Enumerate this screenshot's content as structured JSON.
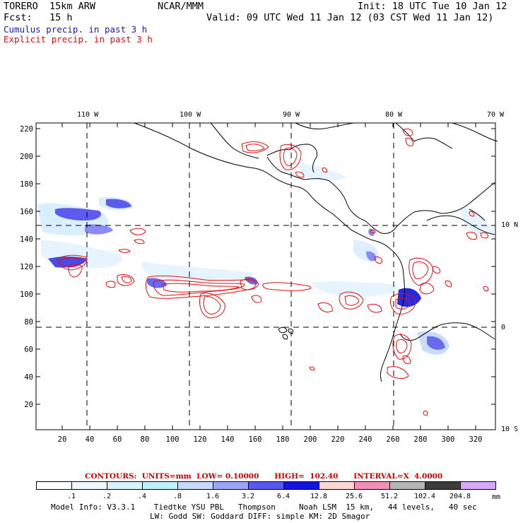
{
  "header": {
    "model": "TORERO  15km ARW",
    "org": "NCAR/MMM",
    "init": "Init: 18 UTC Tue 10 Jan 12",
    "fcst": "Fcst:   15 h",
    "valid": "Valid: 09 UTC Wed 11 Jan 12 (03 CST Wed 11 Jan 12)",
    "field1": "Cumulus precip. in past 3 h",
    "field2": "Explicit precip. in past 3 h",
    "field1_color": "#1a1ab0",
    "field2_color": "#e01010"
  },
  "map": {
    "top_lon_labels": [
      "110 W",
      "100 W",
      "90 W",
      "80 W",
      "70 W"
    ],
    "right_lat_labels": [
      "10 N",
      "0",
      "10 S"
    ],
    "y_ticks": [
      "220",
      "200",
      "180",
      "160",
      "140",
      "120",
      "100",
      "80",
      "60",
      "40",
      "20"
    ],
    "x_ticks": [
      "20",
      "40",
      "60",
      "80",
      "100",
      "120",
      "140",
      "160",
      "180",
      "200",
      "220",
      "240",
      "260",
      "280",
      "300",
      "320"
    ],
    "coast_color": "#000000",
    "grid_color": "#000000",
    "contour_color": "#e01010",
    "cumulus_colors": [
      "#dff0ff",
      "#9fb0f8",
      "#4040e8",
      "#1010d0"
    ]
  },
  "contour_info": {
    "label": "CONTOURS:  UNITS=mm  LOW= 0.10000      HIGH=  102.40      INTERVAL=X  4.0000",
    "color": "#cc0000"
  },
  "colorbar": {
    "labels": [
      ".1",
      ".2",
      ".4",
      ".8",
      "1.6",
      "3.2",
      "6.4",
      "12.8",
      "25.6",
      "51.2",
      "102.4",
      "204.8"
    ],
    "unit": "mm",
    "colors": [
      "#ffffff",
      "#eef8ff",
      "#d6f2ff",
      "#bff0ff",
      "#c8d8ff",
      "#9aa6f6",
      "#5858ee",
      "#1414e0",
      "#ffd4d4",
      "#f090b8",
      "#b4b4b4",
      "#3c3c3c",
      "#d6a8f6"
    ]
  },
  "footer": {
    "line1": "Model Info: V3.3.1    Tiedtke YSU PBL   Thompson     Noah LSM  15 km,   44 levels,   40 sec",
    "line2": "LW: Godd SW: Goddard DIFF: simple KM: 2D Smagor"
  }
}
